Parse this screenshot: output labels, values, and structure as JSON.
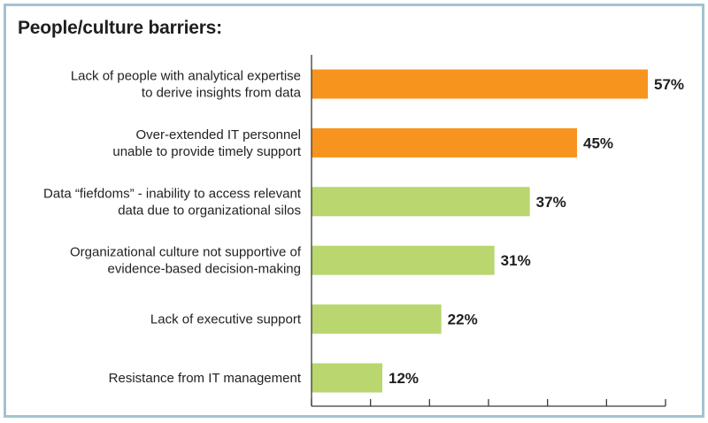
{
  "chart_data": {
    "type": "bar",
    "orientation": "horizontal",
    "title": "People/culture barriers:",
    "xlabel": "",
    "ylabel": "",
    "xlim": [
      0,
      60
    ],
    "xticks": [
      0,
      10,
      20,
      30,
      40,
      50,
      60
    ],
    "show_tick_labels": false,
    "grid": false,
    "legend": null,
    "value_suffix": "%",
    "categories": [
      [
        "Lack of people with analytical expertise",
        "to derive insights from data"
      ],
      [
        "Over-extended IT personnel",
        "unable to provide timely support"
      ],
      [
        "Data “fiefdoms” - inability to access relevant",
        "data due to organizational silos"
      ],
      [
        "Organizational culture not supportive of",
        "evidence-based decision-making"
      ],
      [
        "Lack of executive support"
      ],
      [
        "Resistance from IT management"
      ]
    ],
    "values": [
      57,
      45,
      37,
      31,
      22,
      12
    ],
    "data_labels": [
      "57%",
      "45%",
      "37%",
      "31%",
      "22%",
      "12%"
    ],
    "bar_colors": [
      "#f7941d",
      "#f7941d",
      "#b9d66f",
      "#b9d66f",
      "#b9d66f",
      "#b9d66f"
    ]
  }
}
